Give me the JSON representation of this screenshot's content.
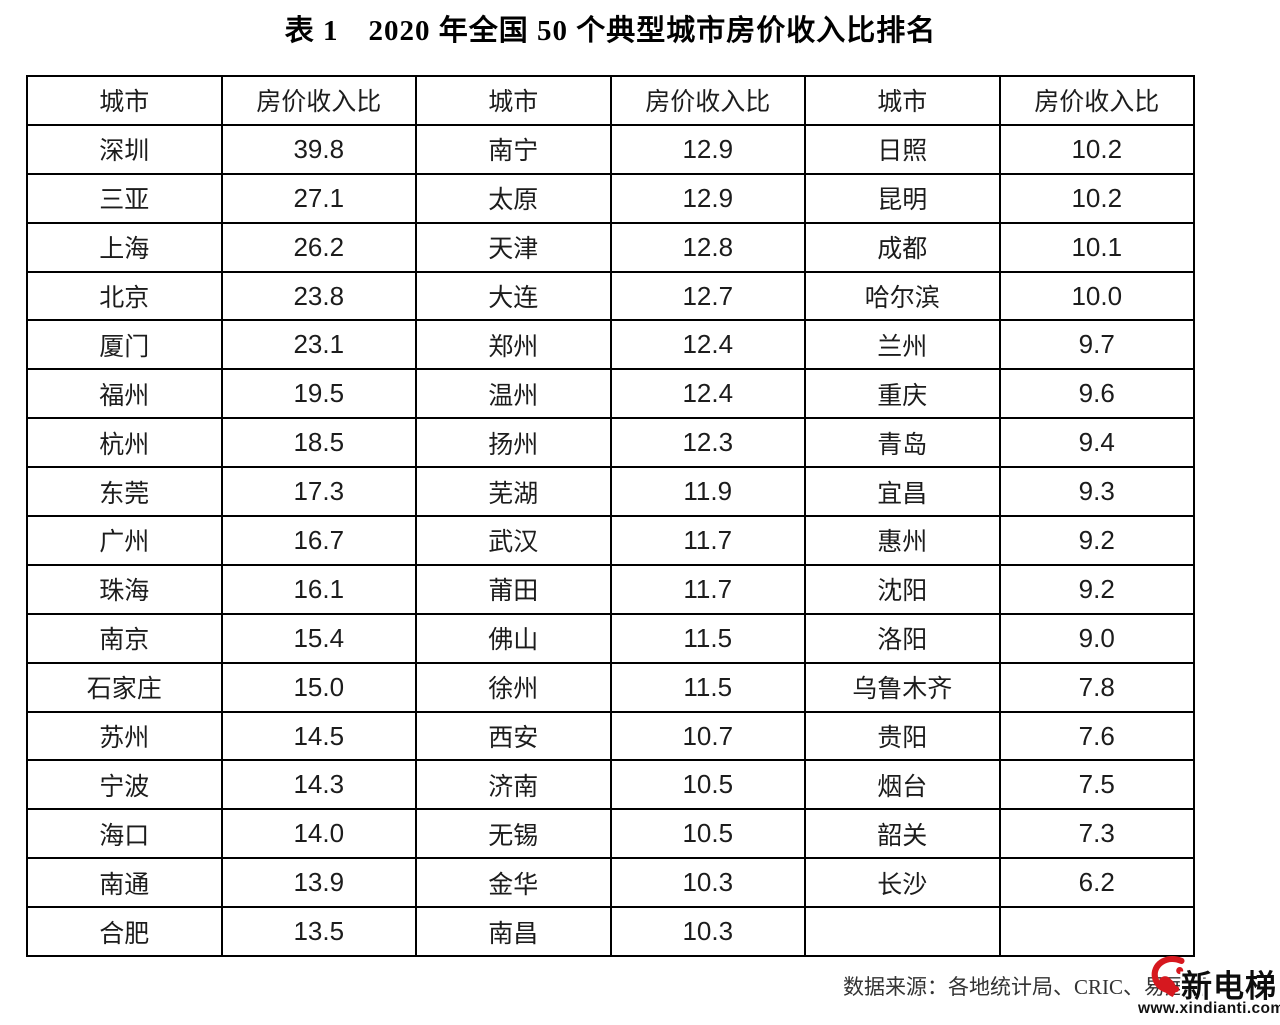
{
  "title": "表 1　2020 年全国 50 个典型城市房价收入比排名",
  "table": {
    "header": [
      "城市",
      "房价收入比",
      "城市",
      "房价收入比",
      "城市",
      "房价收入比"
    ],
    "rows": [
      [
        "深圳",
        "39.8",
        "南宁",
        "12.9",
        "日照",
        "10.2"
      ],
      [
        "三亚",
        "27.1",
        "太原",
        "12.9",
        "昆明",
        "10.2"
      ],
      [
        "上海",
        "26.2",
        "天津",
        "12.8",
        "成都",
        "10.1"
      ],
      [
        "北京",
        "23.8",
        "大连",
        "12.7",
        "哈尔滨",
        "10.0"
      ],
      [
        "厦门",
        "23.1",
        "郑州",
        "12.4",
        "兰州",
        "9.7"
      ],
      [
        "福州",
        "19.5",
        "温州",
        "12.4",
        "重庆",
        "9.6"
      ],
      [
        "杭州",
        "18.5",
        "扬州",
        "12.3",
        "青岛",
        "9.4"
      ],
      [
        "东莞",
        "17.3",
        "芜湖",
        "11.9",
        "宜昌",
        "9.3"
      ],
      [
        "广州",
        "16.7",
        "武汉",
        "11.7",
        "惠州",
        "9.2"
      ],
      [
        "珠海",
        "16.1",
        "莆田",
        "11.7",
        "沈阳",
        "9.2"
      ],
      [
        "南京",
        "15.4",
        "佛山",
        "11.5",
        "洛阳",
        "9.0"
      ],
      [
        "石家庄",
        "15.0",
        "徐州",
        "11.5",
        "乌鲁木齐",
        "7.8"
      ],
      [
        "苏州",
        "14.5",
        "西安",
        "10.7",
        "贵阳",
        "7.6"
      ],
      [
        "宁波",
        "14.3",
        "济南",
        "10.5",
        "烟台",
        "7.5"
      ],
      [
        "海口",
        "14.0",
        "无锡",
        "10.5",
        "韶关",
        "7.3"
      ],
      [
        "南通",
        "13.9",
        "金华",
        "10.3",
        "长沙",
        "6.2"
      ],
      [
        "合肥",
        "13.5",
        "南昌",
        "10.3",
        "",
        ""
      ]
    ]
  },
  "footer": {
    "source_text": "数据来源：各地统计局、CRIC、易居研",
    "logo": {
      "name": "新电梯",
      "url_text": "www.xindianti.com",
      "accent_color": "#d6181f"
    }
  }
}
